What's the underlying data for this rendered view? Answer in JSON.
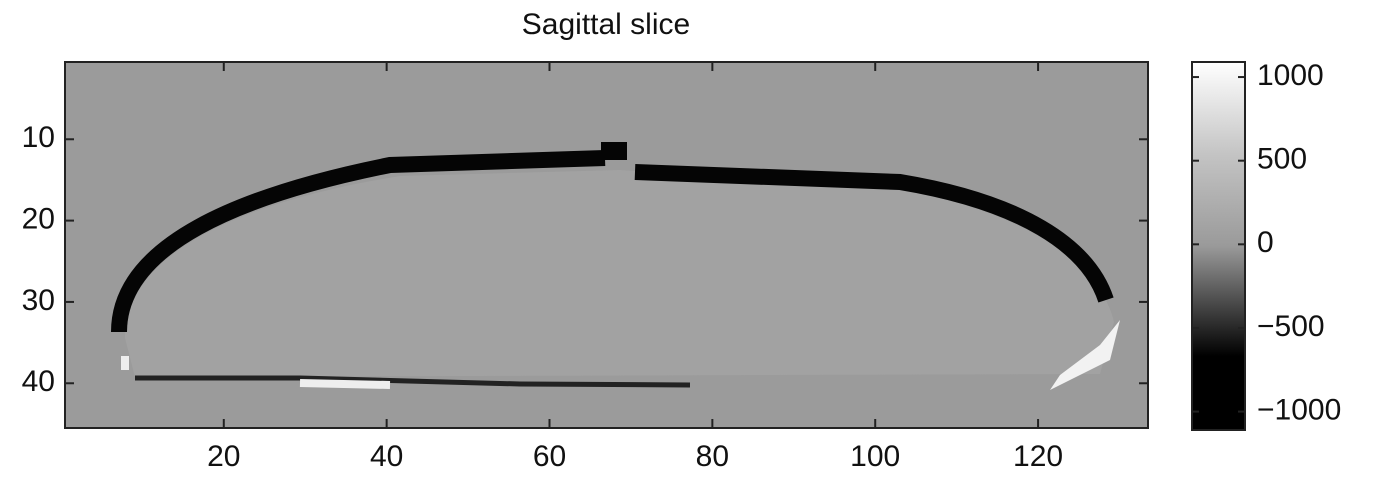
{
  "chart_data": {
    "type": "image",
    "title": "Sagittal slice",
    "colormap": "gray",
    "xlim": [
      0.5,
      133.5
    ],
    "xticks": [
      20,
      40,
      60,
      80,
      100,
      120
    ],
    "ylim": [
      0.5,
      45.5
    ],
    "yticks": [
      10,
      20,
      30,
      40
    ],
    "y_reversed": true,
    "grid": false,
    "clim": [
      -1110,
      1090
    ],
    "cticks": [
      {
        "value": 1000,
        "label": "1000"
      },
      {
        "value": 500,
        "label": "500"
      },
      {
        "value": 0,
        "label": "0"
      },
      {
        "value": -500,
        "label": "−500"
      },
      {
        "value": -1000,
        "label": "−1000"
      }
    ]
  }
}
